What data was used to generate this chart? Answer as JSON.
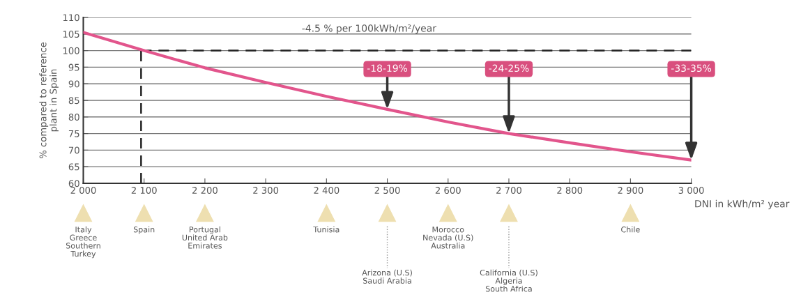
{
  "chart_data": {
    "type": "line",
    "x": [
      2000,
      2100,
      2200,
      2300,
      2400,
      2500,
      2600,
      2700,
      2800,
      2900,
      3000
    ],
    "series": [
      {
        "color": "#e2558c",
        "values": [
          105.5,
          100,
          94.8,
          90.4,
          86.2,
          82.3,
          78.5,
          75,
          72.2,
          69.5,
          67
        ]
      }
    ],
    "xlabel": "DNI in kWh/m² year",
    "ylabel": "% compared to reference\nplant in Spain",
    "xlim": [
      2000,
      3000
    ],
    "xticks": [
      {
        "value": 2000,
        "label": "2 000"
      },
      {
        "value": 2100,
        "label": "2 100"
      },
      {
        "value": 2200,
        "label": "2 200"
      },
      {
        "value": 2300,
        "label": "2 300"
      },
      {
        "value": 2400,
        "label": "2 400"
      },
      {
        "value": 2500,
        "label": "2 500"
      },
      {
        "value": 2600,
        "label": "2 600"
      },
      {
        "value": 2700,
        "label": "2 700"
      },
      {
        "value": 2800,
        "label": "2 800"
      },
      {
        "value": 2900,
        "label": "2 900"
      },
      {
        "value": 3000,
        "label": "3 000"
      }
    ],
    "ylim": [
      60,
      110
    ],
    "yticks": [
      60,
      65,
      70,
      75,
      80,
      85,
      90,
      95,
      100,
      105,
      110
    ],
    "grid": "y",
    "marker": "none",
    "line_style": "solid",
    "legend": false,
    "ref_lines": [
      {
        "axis": "y",
        "value": 100,
        "line_style": "dashed",
        "color": "#222222"
      },
      {
        "axis": "x",
        "value": 2095,
        "line_style": "dashed",
        "color": "#222222"
      }
    ],
    "annotations": [
      "-4.5 % per 100kWh/m²/year",
      {
        "text": "-18-19%",
        "x": 2500,
        "y": 82.3
      },
      {
        "text": "-24-25%",
        "x": 2700,
        "y": 75
      },
      {
        "text": "-33-35%",
        "x": 3000,
        "y": 67
      },
      "Italy\nGreece\nSouthern\nTurkey",
      "Spain",
      "Portugal\nUnited Arab\nEmirates",
      "Tunisia",
      "Arizona (U.S)\nSaudi Arabia",
      "Morocco\nNevada (U.S)\nAustralia",
      "California (U.S)\nAlgeria\nSouth Africa",
      "Chile"
    ]
  }
}
